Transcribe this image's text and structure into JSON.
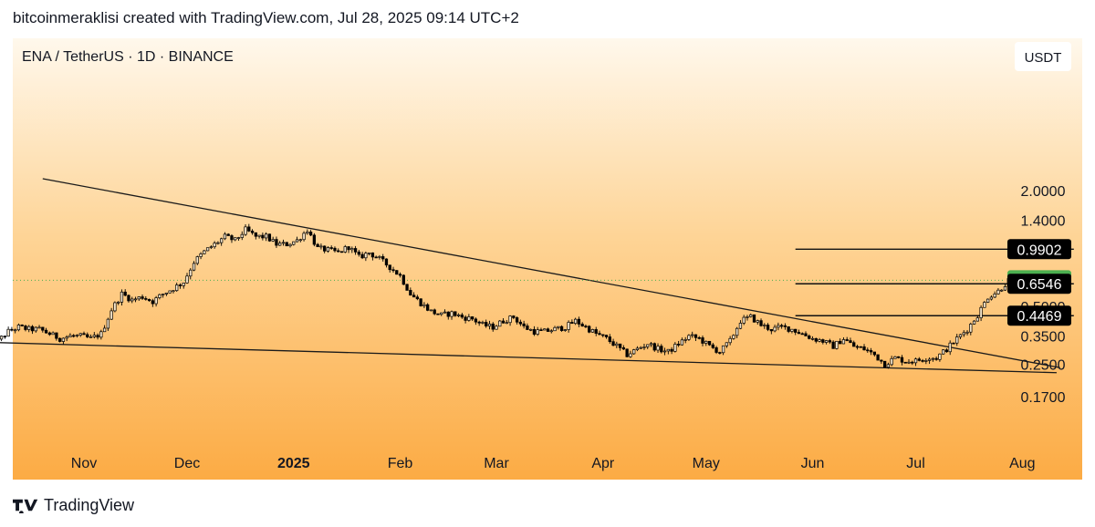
{
  "header": {
    "text": "bitcoinmeraklisi created with TradingView.com, Jul 28, 2025 09:14 UTC+2"
  },
  "chart_title": "ENA / TetherUS · 1D · BINANCE",
  "currency_label": "USDT",
  "footer": {
    "brand": "TradingView"
  },
  "colors": {
    "bg_top": "#fff7ea",
    "bg_bottom": "#fcac45",
    "candle": "#000000",
    "current_price": "#4caf50",
    "label_bg": "#000000",
    "label_text": "#ffffff"
  },
  "chart_data": {
    "type": "candlestick",
    "title": "ENA / TetherUS · 1D · BINANCE",
    "y_scale": "log",
    "x_ticks": [
      {
        "label": "Nov",
        "date": "2024-11-01",
        "bold": false
      },
      {
        "label": "Dec",
        "date": "2024-12-01",
        "bold": false
      },
      {
        "label": "2025",
        "date": "2025-01-01",
        "bold": true
      },
      {
        "label": "Feb",
        "date": "2025-02-01",
        "bold": false
      },
      {
        "label": "Mar",
        "date": "2025-03-01",
        "bold": false
      },
      {
        "label": "Apr",
        "date": "2025-04-01",
        "bold": false
      },
      {
        "label": "May",
        "date": "2025-05-01",
        "bold": false
      },
      {
        "label": "Jun",
        "date": "2025-06-01",
        "bold": false
      },
      {
        "label": "Jul",
        "date": "2025-07-01",
        "bold": false
      },
      {
        "label": "Aug",
        "date": "2025-08-01",
        "bold": false
      }
    ],
    "y_ticks": [
      {
        "label": "2.0000",
        "value": 2.0
      },
      {
        "label": "1.4000",
        "value": 1.4
      },
      {
        "label": "0.5000",
        "value": 0.5
      },
      {
        "label": "0.3500",
        "value": 0.35
      },
      {
        "label": "0.2500",
        "value": 0.25
      },
      {
        "label": "0.1700",
        "value": 0.17
      }
    ],
    "price_labels": [
      {
        "label": "0.9902",
        "value": 0.9902,
        "kind": "level"
      },
      {
        "label": "0.6824",
        "value": 0.6824,
        "kind": "current"
      },
      {
        "label": "0.6546",
        "value": 0.6546,
        "kind": "level"
      },
      {
        "label": "0.4469",
        "value": 0.4469,
        "kind": "level"
      }
    ],
    "horizontal_levels": [
      {
        "value": 0.9902,
        "start_date": "2025-05-27",
        "end_date": "2025-08-16"
      },
      {
        "value": 0.6546,
        "start_date": "2025-05-27",
        "end_date": "2025-08-16"
      },
      {
        "value": 0.4469,
        "start_date": "2025-05-27",
        "end_date": "2025-08-16"
      }
    ],
    "trendlines": [
      {
        "name": "descending resistance",
        "from": {
          "date": "2024-10-20",
          "value": 2.3
        },
        "to": {
          "date": "2025-08-12",
          "value": 0.24
        }
      },
      {
        "name": "support",
        "from": {
          "date": "2024-10-04",
          "value": 0.325
        },
        "to": {
          "date": "2025-08-11",
          "value": 0.226
        }
      }
    ],
    "ohlc_points": [
      [
        "2024-10-04",
        0.27
      ],
      [
        "2024-10-07",
        0.33
      ],
      [
        "2024-10-10",
        0.37
      ],
      [
        "2024-10-13",
        0.39
      ],
      [
        "2024-10-16",
        0.38
      ],
      [
        "2024-10-19",
        0.38
      ],
      [
        "2024-10-22",
        0.36
      ],
      [
        "2024-10-25",
        0.34
      ],
      [
        "2024-10-28",
        0.35
      ],
      [
        "2024-10-31",
        0.35
      ],
      [
        "2024-11-03",
        0.34
      ],
      [
        "2024-11-06",
        0.36
      ],
      [
        "2024-11-09",
        0.48
      ],
      [
        "2024-11-12",
        0.58
      ],
      [
        "2024-11-15",
        0.54
      ],
      [
        "2024-11-18",
        0.56
      ],
      [
        "2024-11-21",
        0.53
      ],
      [
        "2024-11-24",
        0.58
      ],
      [
        "2024-11-27",
        0.62
      ],
      [
        "2024-11-30",
        0.67
      ],
      [
        "2024-12-03",
        0.85
      ],
      [
        "2024-12-06",
        0.96
      ],
      [
        "2024-12-09",
        1.05
      ],
      [
        "2024-12-12",
        1.15
      ],
      [
        "2024-12-15",
        1.1
      ],
      [
        "2024-12-18",
        1.25
      ],
      [
        "2024-12-21",
        1.15
      ],
      [
        "2024-12-24",
        1.15
      ],
      [
        "2024-12-27",
        1.05
      ],
      [
        "2024-12-30",
        1.05
      ],
      [
        "2025-01-02",
        1.1
      ],
      [
        "2025-01-05",
        1.25
      ],
      [
        "2025-01-08",
        1.0
      ],
      [
        "2025-01-11",
        0.98
      ],
      [
        "2025-01-14",
        0.95
      ],
      [
        "2025-01-17",
        1.02
      ],
      [
        "2025-01-20",
        0.9
      ],
      [
        "2025-01-23",
        0.95
      ],
      [
        "2025-01-26",
        0.88
      ],
      [
        "2025-01-29",
        0.8
      ],
      [
        "2025-02-01",
        0.72
      ],
      [
        "2025-02-04",
        0.58
      ],
      [
        "2025-02-07",
        0.52
      ],
      [
        "2025-02-10",
        0.47
      ],
      [
        "2025-02-13",
        0.45
      ],
      [
        "2025-02-16",
        0.46
      ],
      [
        "2025-02-19",
        0.44
      ],
      [
        "2025-02-22",
        0.43
      ],
      [
        "2025-02-25",
        0.4
      ],
      [
        "2025-02-28",
        0.39
      ],
      [
        "2025-03-03",
        0.42
      ],
      [
        "2025-03-06",
        0.44
      ],
      [
        "2025-03-09",
        0.39
      ],
      [
        "2025-03-12",
        0.37
      ],
      [
        "2025-03-15",
        0.37
      ],
      [
        "2025-03-18",
        0.38
      ],
      [
        "2025-03-21",
        0.39
      ],
      [
        "2025-03-24",
        0.42
      ],
      [
        "2025-03-27",
        0.39
      ],
      [
        "2025-03-30",
        0.36
      ],
      [
        "2025-04-02",
        0.34
      ],
      [
        "2025-04-05",
        0.31
      ],
      [
        "2025-04-08",
        0.28
      ],
      [
        "2025-04-11",
        0.3
      ],
      [
        "2025-04-14",
        0.32
      ],
      [
        "2025-04-17",
        0.3
      ],
      [
        "2025-04-20",
        0.29
      ],
      [
        "2025-04-23",
        0.32
      ],
      [
        "2025-04-26",
        0.35
      ],
      [
        "2025-04-29",
        0.34
      ],
      [
        "2025-05-02",
        0.31
      ],
      [
        "2025-05-05",
        0.29
      ],
      [
        "2025-05-08",
        0.33
      ],
      [
        "2025-05-11",
        0.42
      ],
      [
        "2025-05-14",
        0.44
      ],
      [
        "2025-05-17",
        0.4
      ],
      [
        "2025-05-20",
        0.38
      ],
      [
        "2025-05-23",
        0.39
      ],
      [
        "2025-05-26",
        0.38
      ],
      [
        "2025-05-29",
        0.36
      ],
      [
        "2025-06-01",
        0.34
      ],
      [
        "2025-06-04",
        0.33
      ],
      [
        "2025-06-07",
        0.31
      ],
      [
        "2025-06-10",
        0.34
      ],
      [
        "2025-06-13",
        0.31
      ],
      [
        "2025-06-16",
        0.3
      ],
      [
        "2025-06-19",
        0.28
      ],
      [
        "2025-06-22",
        0.25
      ],
      [
        "2025-06-25",
        0.27
      ],
      [
        "2025-06-28",
        0.26
      ],
      [
        "2025-07-01",
        0.26
      ],
      [
        "2025-07-04",
        0.27
      ],
      [
        "2025-07-07",
        0.27
      ],
      [
        "2025-07-10",
        0.3
      ],
      [
        "2025-07-13",
        0.34
      ],
      [
        "2025-07-16",
        0.38
      ],
      [
        "2025-07-19",
        0.45
      ],
      [
        "2025-07-22",
        0.56
      ],
      [
        "2025-07-25",
        0.6
      ],
      [
        "2025-07-28",
        0.68
      ]
    ]
  }
}
